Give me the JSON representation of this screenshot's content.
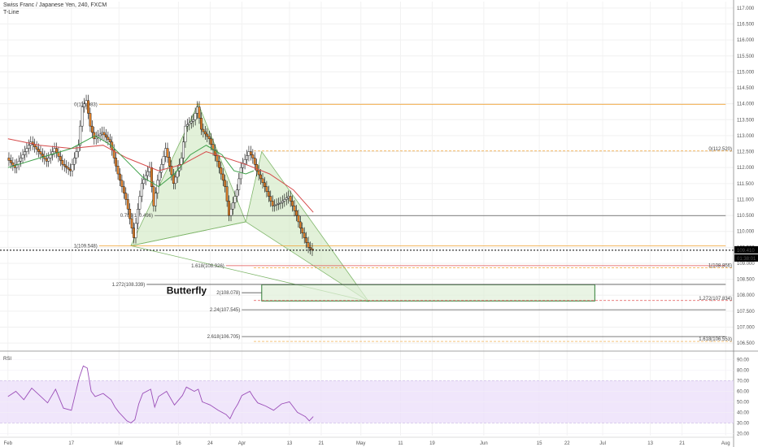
{
  "header": {
    "symbol_line": "Swiss Franc / Japanese Yen, 240, FXCM",
    "indicator": "T-Line"
  },
  "rsi_panel": {
    "label": "RSI"
  },
  "pattern_label": "Butterfly",
  "price_tag": {
    "price": "109.410",
    "countdown": "01:38:01"
  },
  "colors": {
    "candle_up": "#ffffff",
    "candle_down": "#e0802a",
    "candle_border": "#000000",
    "ma_red": "#d64b4b",
    "ma_green": "#3fa14a",
    "fib_orange": "#f0a030",
    "fib_red": "#e05050",
    "fib_dark": "#555555",
    "pattern_fill": "#cfe8c0",
    "rsi_line": "#9b4fb8",
    "rsi_band": "#ece0fa",
    "box_stroke": "#2e7d32",
    "box_fill": "#dff0d8"
  },
  "chart_data": [
    {
      "type": "candlestick",
      "title": "Swiss Franc / Japanese Yen, 240, FXCM",
      "y_axis_ticks": [
        "117.000",
        "116.500",
        "116.000",
        "115.500",
        "115.000",
        "114.500",
        "114.000",
        "113.500",
        "113.000",
        "112.500",
        "112.000",
        "111.500",
        "111.000",
        "110.500",
        "110.000",
        "109.500",
        "109.000",
        "108.500",
        "108.000",
        "107.500",
        "107.000",
        "106.500"
      ],
      "ylim": [
        106.3,
        117.2
      ],
      "x_axis_ticks": [
        {
          "label": "Feb",
          "day": 0
        },
        {
          "label": "17",
          "day": 16
        },
        {
          "label": "Mar",
          "day": 28
        },
        {
          "label": "16",
          "day": 43
        },
        {
          "label": "24",
          "day": 51
        },
        {
          "label": "Apr",
          "day": 59
        },
        {
          "label": "13",
          "day": 71
        },
        {
          "label": "21",
          "day": 79
        },
        {
          "label": "May",
          "day": 89
        },
        {
          "label": "11",
          "day": 99
        },
        {
          "label": "19",
          "day": 107
        },
        {
          "label": "Jun",
          "day": 120
        },
        {
          "label": "15",
          "day": 134
        },
        {
          "label": "22",
          "day": 141
        },
        {
          "label": "Jul",
          "day": 150
        },
        {
          "label": "13",
          "day": 162
        },
        {
          "label": "21",
          "day": 170
        },
        {
          "label": "Aug",
          "day": 181
        }
      ],
      "price_path": [
        [
          0,
          112.3
        ],
        [
          2,
          112.0
        ],
        [
          4,
          112.4
        ],
        [
          6,
          112.8
        ],
        [
          8,
          112.5
        ],
        [
          10,
          112.2
        ],
        [
          12,
          112.6
        ],
        [
          14,
          112.1
        ],
        [
          16,
          111.9
        ],
        [
          18,
          112.7
        ],
        [
          19,
          113.9
        ],
        [
          20,
          114.1
        ],
        [
          21,
          113.3
        ],
        [
          22,
          112.9
        ],
        [
          24,
          113.1
        ],
        [
          26,
          112.8
        ],
        [
          27,
          112.3
        ],
        [
          28,
          111.8
        ],
        [
          30,
          111.0
        ],
        [
          31,
          110.4
        ],
        [
          32,
          109.8
        ],
        [
          33,
          110.7
        ],
        [
          34,
          111.5
        ],
        [
          36,
          112.0
        ],
        [
          37,
          110.8
        ],
        [
          38,
          111.6
        ],
        [
          40,
          112.6
        ],
        [
          42,
          111.5
        ],
        [
          44,
          112.3
        ],
        [
          45,
          113.3
        ],
        [
          47,
          113.5
        ],
        [
          48,
          113.9
        ],
        [
          49,
          113.2
        ],
        [
          51,
          112.9
        ],
        [
          53,
          112.2
        ],
        [
          55,
          111.4
        ],
        [
          56,
          110.5
        ],
        [
          57,
          110.9
        ],
        [
          58,
          111.3
        ],
        [
          59,
          112.0
        ],
        [
          61,
          112.5
        ],
        [
          62,
          112.3
        ],
        [
          63,
          111.9
        ],
        [
          65,
          111.4
        ],
        [
          67,
          110.8
        ],
        [
          69,
          110.9
        ],
        [
          71,
          111.1
        ],
        [
          73,
          110.5
        ],
        [
          74,
          110.1
        ],
        [
          75,
          109.8
        ],
        [
          76,
          109.5
        ],
        [
          77,
          109.41
        ]
      ],
      "ma_red_path": [
        [
          0,
          112.9
        ],
        [
          8,
          112.7
        ],
        [
          16,
          112.6
        ],
        [
          24,
          112.7
        ],
        [
          30,
          112.3
        ],
        [
          38,
          111.9
        ],
        [
          44,
          112.1
        ],
        [
          50,
          112.5
        ],
        [
          55,
          112.3
        ],
        [
          60,
          112.1
        ],
        [
          66,
          111.8
        ],
        [
          72,
          111.3
        ],
        [
          77,
          110.6
        ]
      ],
      "ma_green_path": [
        [
          0,
          112.0
        ],
        [
          8,
          112.3
        ],
        [
          16,
          112.6
        ],
        [
          22,
          113.0
        ],
        [
          26,
          112.7
        ],
        [
          30,
          112.2
        ],
        [
          34,
          111.7
        ],
        [
          38,
          111.4
        ],
        [
          42,
          111.8
        ],
        [
          46,
          112.4
        ],
        [
          50,
          112.7
        ],
        [
          54,
          112.4
        ],
        [
          57,
          111.9
        ],
        [
          60,
          111.8
        ],
        [
          62,
          111.9
        ]
      ]
    },
    {
      "type": "line",
      "title": "RSI",
      "y_axis_ticks": [
        "90.00",
        "80.00",
        "70.00",
        "60.00",
        "50.00",
        "40.00",
        "30.00",
        "20.00"
      ],
      "ylim": [
        18,
        95
      ],
      "band": [
        30,
        70
      ],
      "values": [
        [
          0,
          55
        ],
        [
          2,
          60
        ],
        [
          4,
          52
        ],
        [
          6,
          63
        ],
        [
          8,
          56
        ],
        [
          10,
          49
        ],
        [
          12,
          62
        ],
        [
          14,
          44
        ],
        [
          16,
          42
        ],
        [
          18,
          73
        ],
        [
          19,
          84
        ],
        [
          20,
          82
        ],
        [
          21,
          60
        ],
        [
          22,
          55
        ],
        [
          24,
          58
        ],
        [
          26,
          52
        ],
        [
          27,
          45
        ],
        [
          28,
          40
        ],
        [
          30,
          32
        ],
        [
          31,
          30
        ],
        [
          32,
          33
        ],
        [
          33,
          48
        ],
        [
          34,
          58
        ],
        [
          36,
          62
        ],
        [
          37,
          45
        ],
        [
          38,
          55
        ],
        [
          40,
          60
        ],
        [
          42,
          47
        ],
        [
          44,
          56
        ],
        [
          45,
          64
        ],
        [
          47,
          60
        ],
        [
          48,
          62
        ],
        [
          49,
          50
        ],
        [
          51,
          47
        ],
        [
          53,
          42
        ],
        [
          55,
          38
        ],
        [
          56,
          34
        ],
        [
          57,
          42
        ],
        [
          58,
          48
        ],
        [
          59,
          56
        ],
        [
          61,
          60
        ],
        [
          62,
          54
        ],
        [
          63,
          49
        ],
        [
          65,
          46
        ],
        [
          67,
          42
        ],
        [
          69,
          48
        ],
        [
          71,
          50
        ],
        [
          73,
          40
        ],
        [
          74,
          38
        ],
        [
          75,
          36
        ],
        [
          76,
          32
        ],
        [
          77,
          36
        ]
      ]
    }
  ],
  "annotations": {
    "left_fibs": [
      {
        "label": "0(113.983)",
        "price": 113.983,
        "color": "orange",
        "day_start": 16,
        "day_end": 181
      },
      {
        "label": "0.786(110.496)",
        "price": 110.496,
        "color": "dark",
        "day_start": 30,
        "day_end": 181
      },
      {
        "label": "1(109.548)",
        "price": 109.548,
        "color": "orange",
        "day_start": 16,
        "day_end": 181
      },
      {
        "label": "1.618(108.926)",
        "price": 108.926,
        "color": "red",
        "day_start": 48,
        "day_end": 181
      },
      {
        "label": "1.272(108.339)",
        "price": 108.339,
        "color": "dark",
        "day_start": 28,
        "day_end": 181
      },
      {
        "label": "2(108.078)",
        "price": 108.078,
        "color": "dark",
        "day_start": 52,
        "day_end": 64
      },
      {
        "label": "2.24(107.545)",
        "price": 107.545,
        "color": "dark",
        "day_start": 52,
        "day_end": 181
      },
      {
        "label": "2.618(106.705)",
        "price": 106.705,
        "color": "dark",
        "day_start": 52,
        "day_end": 181
      }
    ],
    "right_fibs": [
      {
        "label": "0(112.520)",
        "price": 112.52,
        "color": "orange"
      },
      {
        "label": "1(108.856)",
        "price": 108.856,
        "color": "orange"
      },
      {
        "label": "1.272(107.834)",
        "price": 107.834,
        "color": "red"
      },
      {
        "label": "1.618(106.553)",
        "price": 106.553,
        "color": "orange"
      }
    ],
    "pattern_points": [
      [
        31,
        109.55
      ],
      [
        48,
        114.0
      ],
      [
        60,
        110.3
      ],
      [
        64,
        112.5
      ],
      [
        91,
        107.8
      ]
    ],
    "target_box": {
      "day_start": 64,
      "day_end": 148,
      "price_top": 108.33,
      "price_bottom": 107.82
    }
  }
}
